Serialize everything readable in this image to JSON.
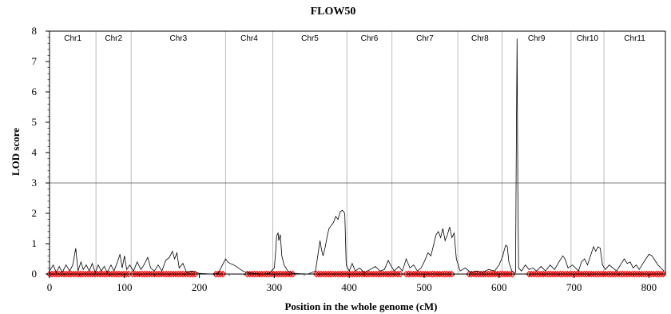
{
  "chart_data": {
    "type": "line",
    "title": "FLOW50",
    "xlabel": "Position in the whole genome (cM)",
    "ylabel": "LOD score",
    "xlim": [
      0,
      822
    ],
    "ylim": [
      0,
      8
    ],
    "xticks": [
      0,
      100,
      200,
      300,
      400,
      500,
      600,
      700,
      800
    ],
    "yticks": [
      0,
      1,
      2,
      3,
      4,
      5,
      6,
      7,
      8
    ],
    "threshold": 3,
    "grid": false,
    "legend": "none",
    "colors": {
      "line": "#000000",
      "markers": "#ff0000",
      "chr_divider": "#bbbbbb",
      "threshold": "#555555"
    },
    "chromosomes": [
      {
        "name": "Chr1",
        "start": 0,
        "end": 62
      },
      {
        "name": "Chr2",
        "start": 62,
        "end": 109
      },
      {
        "name": "Chr3",
        "start": 109,
        "end": 235
      },
      {
        "name": "Chr4",
        "start": 235,
        "end": 298
      },
      {
        "name": "Chr5",
        "start": 298,
        "end": 397
      },
      {
        "name": "Chr6",
        "start": 397,
        "end": 457
      },
      {
        "name": "Chr7",
        "start": 457,
        "end": 545
      },
      {
        "name": "Chr8",
        "start": 545,
        "end": 604
      },
      {
        "name": "Chr9",
        "start": 604,
        "end": 696
      },
      {
        "name": "Chr10",
        "start": 696,
        "end": 740
      },
      {
        "name": "Chr11",
        "start": 740,
        "end": 822
      }
    ],
    "series": [
      {
        "points": [
          [
            0,
            0.1
          ],
          [
            5,
            0.3
          ],
          [
            9,
            0.05
          ],
          [
            13,
            0.25
          ],
          [
            17,
            0.05
          ],
          [
            22,
            0.3
          ],
          [
            27,
            0.1
          ],
          [
            31,
            0.3
          ],
          [
            35,
            0.85
          ],
          [
            38,
            0.1
          ],
          [
            42,
            0.4
          ],
          [
            45,
            0.15
          ],
          [
            49,
            0.3
          ],
          [
            53,
            0.1
          ],
          [
            57,
            0.35
          ],
          [
            61,
            0.05
          ],
          [
            65,
            0.3
          ],
          [
            69,
            0.1
          ],
          [
            73,
            0.25
          ],
          [
            77,
            0.05
          ],
          [
            82,
            0.3
          ],
          [
            86,
            0.1
          ],
          [
            90,
            0.35
          ],
          [
            94,
            0.65
          ],
          [
            97,
            0.2
          ],
          [
            100,
            0.6
          ],
          [
            103,
            0.15
          ],
          [
            107,
            0.3
          ],
          [
            112,
            0.1
          ],
          [
            117,
            0.4
          ],
          [
            122,
            0.15
          ],
          [
            126,
            0.3
          ],
          [
            131,
            0.55
          ],
          [
            135,
            0.2
          ],
          [
            140,
            0.1
          ],
          [
            145,
            0.3
          ],
          [
            150,
            0.1
          ],
          [
            155,
            0.45
          ],
          [
            160,
            0.55
          ],
          [
            164,
            0.75
          ],
          [
            167,
            0.5
          ],
          [
            170,
            0.7
          ],
          [
            173,
            0.2
          ],
          [
            178,
            0.35
          ],
          [
            183,
            0.05
          ],
          [
            190,
            0.1
          ],
          [
            200,
            0.02
          ],
          [
            215,
            0.0
          ],
          [
            225,
            0.02
          ],
          [
            235,
            0.5
          ],
          [
            238,
            0.4
          ],
          [
            241,
            0.35
          ],
          [
            246,
            0.3
          ],
          [
            252,
            0.2
          ],
          [
            258,
            0.1
          ],
          [
            264,
            0.05
          ],
          [
            272,
            0.02
          ],
          [
            285,
            0.0
          ],
          [
            293,
            0.02
          ],
          [
            300,
            0.2
          ],
          [
            302,
            0.8
          ],
          [
            303,
            1.25
          ],
          [
            305,
            1.35
          ],
          [
            306,
            1.1
          ],
          [
            308,
            1.3
          ],
          [
            310,
            0.6
          ],
          [
            313,
            0.3
          ],
          [
            318,
            0.1
          ],
          [
            325,
            0.02
          ],
          [
            345,
            0.0
          ],
          [
            355,
            0.1
          ],
          [
            358,
            0.6
          ],
          [
            361,
            1.1
          ],
          [
            363,
            0.8
          ],
          [
            365,
            0.6
          ],
          [
            368,
            0.9
          ],
          [
            371,
            1.3
          ],
          [
            373,
            1.5
          ],
          [
            376,
            1.6
          ],
          [
            379,
            1.7
          ],
          [
            382,
            1.9
          ],
          [
            385,
            1.8
          ],
          [
            388,
            2.05
          ],
          [
            391,
            2.1
          ],
          [
            394,
            2.0
          ],
          [
            396,
            0.3
          ],
          [
            400,
            0.1
          ],
          [
            404,
            0.35
          ],
          [
            408,
            0.1
          ],
          [
            414,
            0.2
          ],
          [
            420,
            0.05
          ],
          [
            428,
            0.15
          ],
          [
            435,
            0.25
          ],
          [
            441,
            0.1
          ],
          [
            447,
            0.15
          ],
          [
            452,
            0.45
          ],
          [
            455,
            0.3
          ],
          [
            460,
            0.1
          ],
          [
            466,
            0.25
          ],
          [
            471,
            0.1
          ],
          [
            476,
            0.5
          ],
          [
            481,
            0.2
          ],
          [
            486,
            0.3
          ],
          [
            491,
            0.1
          ],
          [
            496,
            0.2
          ],
          [
            501,
            0.45
          ],
          [
            505,
            0.7
          ],
          [
            509,
            0.6
          ],
          [
            513,
            1.0
          ],
          [
            516,
            1.3
          ],
          [
            519,
            1.4
          ],
          [
            522,
            1.2
          ],
          [
            525,
            1.5
          ],
          [
            528,
            1.1
          ],
          [
            531,
            1.3
          ],
          [
            534,
            1.55
          ],
          [
            537,
            1.2
          ],
          [
            540,
            1.35
          ],
          [
            543,
            0.5
          ],
          [
            548,
            0.1
          ],
          [
            555,
            0.2
          ],
          [
            562,
            0.05
          ],
          [
            570,
            0.1
          ],
          [
            578,
            0.05
          ],
          [
            586,
            0.15
          ],
          [
            594,
            0.1
          ],
          [
            600,
            0.3
          ],
          [
            605,
            0.6
          ],
          [
            607,
            0.8
          ],
          [
            609,
            0.95
          ],
          [
            611,
            0.9
          ],
          [
            613,
            0.4
          ],
          [
            617,
            0.1
          ],
          [
            620,
            0.05
          ],
          [
            622,
            0.05
          ],
          [
            623,
            4.0
          ],
          [
            624,
            7.75
          ],
          [
            625,
            3.0
          ],
          [
            626,
            0.2
          ],
          [
            630,
            0.1
          ],
          [
            635,
            0.3
          ],
          [
            640,
            0.15
          ],
          [
            645,
            0.2
          ],
          [
            650,
            0.1
          ],
          [
            656,
            0.25
          ],
          [
            662,
            0.1
          ],
          [
            668,
            0.3
          ],
          [
            674,
            0.15
          ],
          [
            680,
            0.4
          ],
          [
            685,
            0.6
          ],
          [
            688,
            0.5
          ],
          [
            692,
            0.2
          ],
          [
            698,
            0.3
          ],
          [
            702,
            0.2
          ],
          [
            706,
            0.1
          ],
          [
            710,
            0.4
          ],
          [
            714,
            0.5
          ],
          [
            718,
            0.3
          ],
          [
            722,
            0.6
          ],
          [
            726,
            0.9
          ],
          [
            729,
            0.75
          ],
          [
            732,
            0.9
          ],
          [
            735,
            0.85
          ],
          [
            738,
            0.3
          ],
          [
            742,
            0.15
          ],
          [
            747,
            0.3
          ],
          [
            752,
            0.2
          ],
          [
            757,
            0.1
          ],
          [
            762,
            0.3
          ],
          [
            767,
            0.5
          ],
          [
            771,
            0.35
          ],
          [
            775,
            0.4
          ],
          [
            779,
            0.2
          ],
          [
            783,
            0.3
          ],
          [
            787,
            0.15
          ],
          [
            792,
            0.35
          ],
          [
            796,
            0.5
          ],
          [
            800,
            0.65
          ],
          [
            804,
            0.6
          ],
          [
            808,
            0.45
          ],
          [
            812,
            0.3
          ],
          [
            816,
            0.2
          ],
          [
            820,
            0.1
          ]
        ]
      }
    ],
    "markers": {
      "y": 0,
      "ranges": [
        [
          0,
          62
        ],
        [
          64,
          108
        ],
        [
          111,
          196
        ],
        [
          222,
          232
        ],
        [
          264,
          325
        ],
        [
          356,
          470
        ],
        [
          476,
          540
        ],
        [
          560,
          620
        ],
        [
          640,
          822
        ]
      ],
      "spacing": 3.2
    }
  }
}
